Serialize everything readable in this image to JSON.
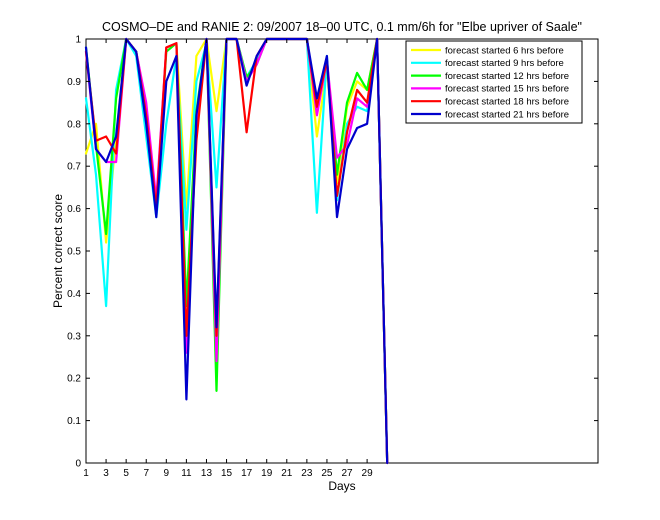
{
  "chart_data": {
    "type": "line",
    "title": "COSMO–DE and RANIE 2: 09/2007 18–00 UTC, 0.1 mm/6h for \"Elbe upriver of Saale\"",
    "xlabel": "Days",
    "ylabel": "Percent correct score",
    "xlim": [
      1,
      52
    ],
    "ylim": [
      0,
      1
    ],
    "xticks": [
      1,
      3,
      5,
      7,
      9,
      11,
      13,
      15,
      17,
      19,
      21,
      23,
      25,
      27,
      29
    ],
    "yticks": [
      0,
      0.1,
      0.2,
      0.3,
      0.4,
      0.5,
      0.6,
      0.7,
      0.8,
      0.9,
      1
    ],
    "ytick_labels": [
      "0",
      "0.1",
      "0.2",
      "0.3",
      "0.4",
      "0.5",
      "0.6",
      "0.7",
      "0.8",
      "0.9",
      "1"
    ],
    "grid": false,
    "legend_position": "top-right",
    "x": [
      1,
      2,
      3,
      4,
      5,
      6,
      7,
      8,
      9,
      10,
      11,
      12,
      13,
      14,
      15,
      16,
      17,
      18,
      19,
      20,
      21,
      22,
      23,
      24,
      25,
      26,
      27,
      28,
      29,
      30,
      31
    ],
    "series": [
      {
        "name": "forecast started 6 hrs before",
        "color": "#ffff00",
        "values": [
          0.73,
          0.8,
          0.52,
          0.77,
          1.0,
          0.97,
          0.83,
          0.6,
          0.98,
          0.99,
          0.6,
          0.96,
          1.0,
          0.83,
          1.0,
          1.0,
          0.9,
          0.95,
          1.0,
          1.0,
          1.0,
          1.0,
          1.0,
          0.77,
          0.93,
          0.66,
          0.84,
          0.9,
          0.88,
          1.0,
          0.0
        ]
      },
      {
        "name": "forecast started 9 hrs before",
        "color": "#00ffff",
        "values": [
          0.86,
          0.68,
          0.37,
          0.88,
          1.0,
          0.96,
          0.77,
          0.58,
          0.8,
          0.96,
          0.55,
          0.9,
          0.99,
          0.65,
          1.0,
          1.0,
          0.91,
          0.95,
          1.0,
          1.0,
          1.0,
          1.0,
          1.0,
          0.59,
          0.96,
          0.62,
          0.8,
          0.84,
          0.83,
          1.0,
          0.0
        ]
      },
      {
        "name": "forecast started 12 hrs before",
        "color": "#00ff00",
        "values": [
          0.98,
          0.75,
          0.54,
          0.86,
          1.0,
          0.97,
          0.84,
          0.61,
          0.97,
          0.99,
          0.37,
          0.83,
          1.0,
          0.17,
          1.0,
          1.0,
          0.91,
          0.94,
          1.0,
          1.0,
          1.0,
          1.0,
          1.0,
          0.83,
          0.95,
          0.68,
          0.85,
          0.92,
          0.88,
          1.0,
          0.0
        ]
      },
      {
        "name": "forecast started 15 hrs before",
        "color": "#ff00ff",
        "values": [
          0.97,
          0.74,
          0.71,
          0.71,
          1.0,
          0.97,
          0.85,
          0.62,
          0.98,
          0.99,
          0.26,
          0.8,
          1.0,
          0.24,
          1.0,
          1.0,
          0.9,
          0.94,
          1.0,
          1.0,
          1.0,
          1.0,
          1.0,
          0.82,
          0.95,
          0.72,
          0.75,
          0.86,
          0.84,
          1.0,
          0.0
        ]
      },
      {
        "name": "forecast started 18 hrs before",
        "color": "#ff0000",
        "values": [
          0.97,
          0.76,
          0.77,
          0.73,
          1.0,
          0.97,
          0.82,
          0.6,
          0.98,
          0.99,
          0.3,
          0.76,
          1.0,
          0.3,
          1.0,
          1.0,
          0.78,
          0.96,
          1.0,
          1.0,
          1.0,
          1.0,
          1.0,
          0.84,
          0.95,
          0.63,
          0.78,
          0.88,
          0.85,
          1.0,
          0.0
        ]
      },
      {
        "name": "forecast started 21 hrs before",
        "color": "#0000cc",
        "values": [
          0.98,
          0.74,
          0.71,
          0.77,
          1.0,
          0.97,
          0.8,
          0.58,
          0.9,
          0.96,
          0.15,
          0.82,
          1.0,
          0.32,
          1.0,
          1.0,
          0.89,
          0.96,
          1.0,
          1.0,
          1.0,
          1.0,
          1.0,
          0.86,
          0.96,
          0.58,
          0.74,
          0.79,
          0.8,
          1.0,
          0.0
        ]
      }
    ]
  }
}
